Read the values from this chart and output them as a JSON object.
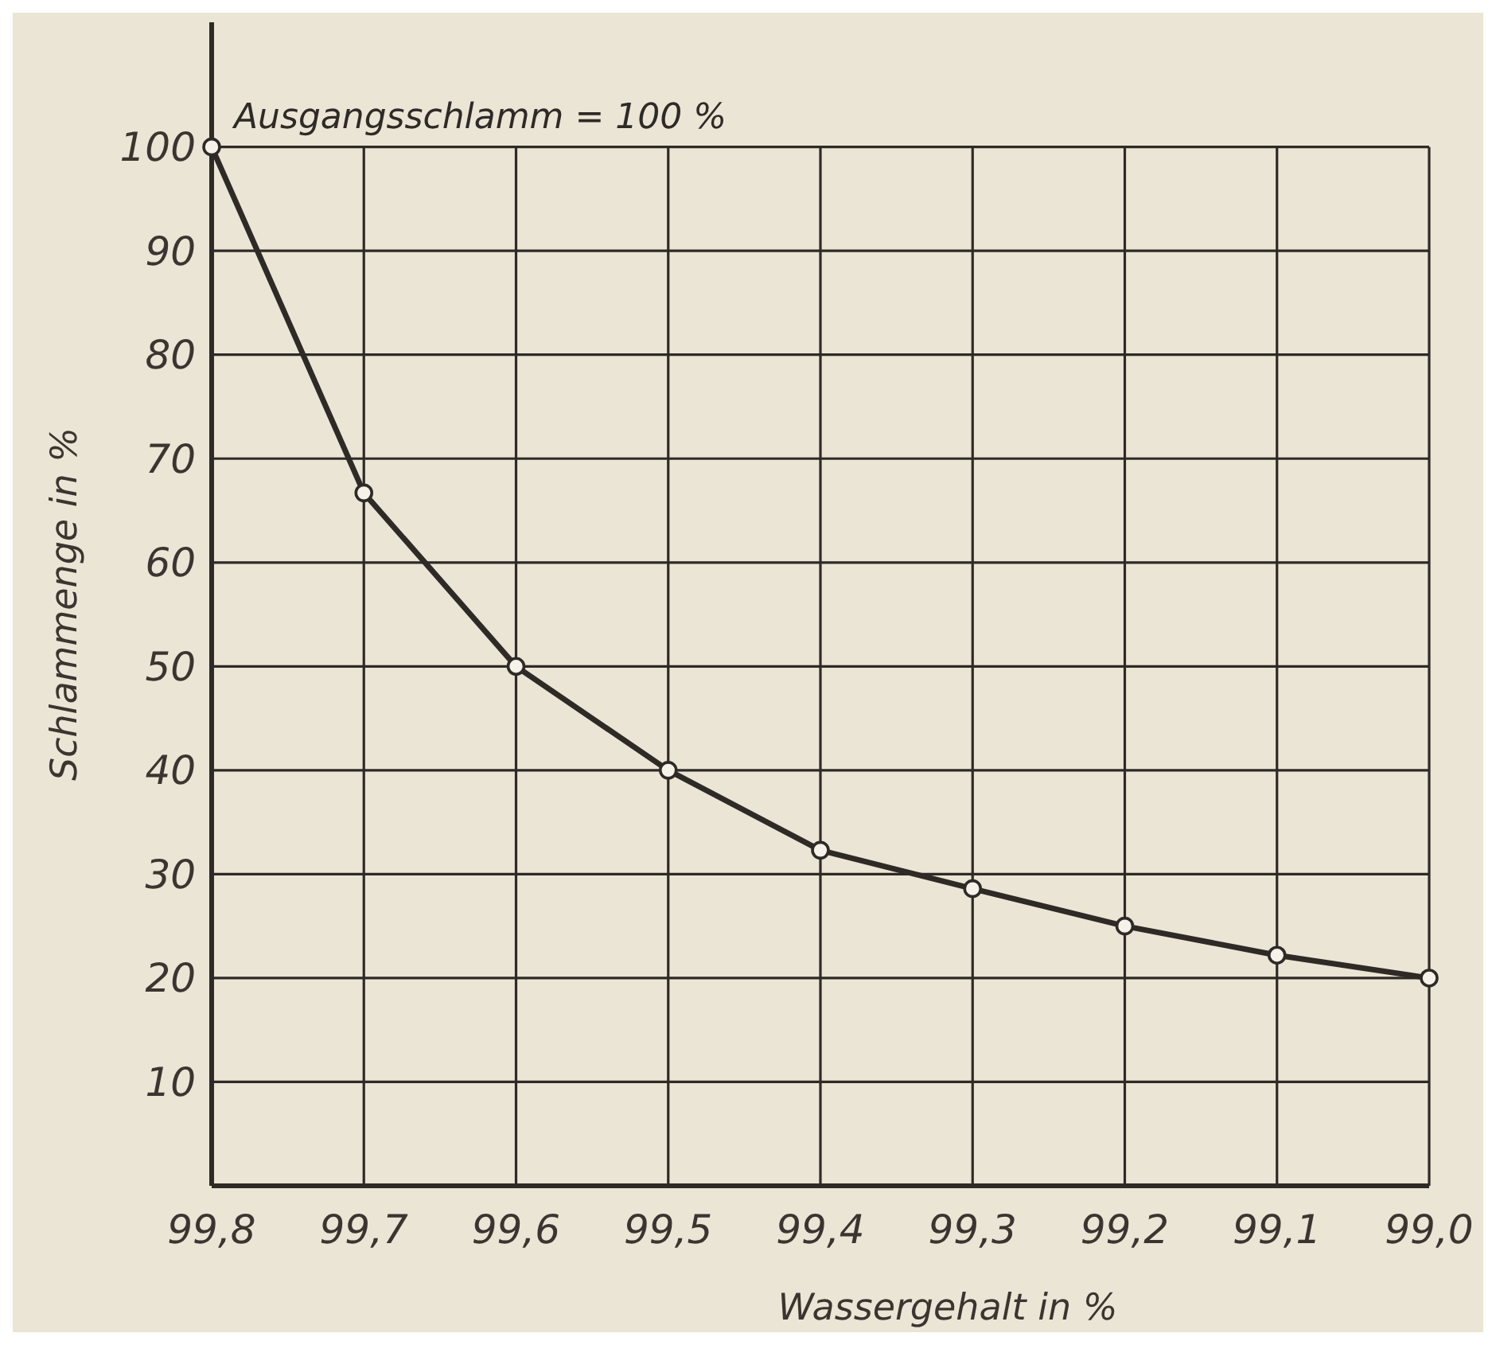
{
  "chart_data": {
    "type": "line",
    "xlabel": "Wassergehalt in %",
    "ylabel": "Schlammenge in %",
    "x": [
      99.8,
      99.7,
      99.6,
      99.5,
      99.4,
      99.3,
      99.2,
      99.1,
      99.0
    ],
    "series": [
      {
        "color": "#2e2a26",
        "values": [
          100,
          66.7,
          50,
          40,
          32.3,
          28.6,
          25,
          22.2,
          20
        ]
      }
    ],
    "xlim": [
      99.8,
      99.0
    ],
    "xticks": [
      {
        "value": 99.8,
        "label": "99,8"
      },
      {
        "value": 99.7,
        "label": "99,7"
      },
      {
        "value": 99.6,
        "label": "99,6"
      },
      {
        "value": 99.5,
        "label": "99,5"
      },
      {
        "value": 99.4,
        "label": "99,4"
      },
      {
        "value": 99.3,
        "label": "99,3"
      },
      {
        "value": 99.2,
        "label": "99,2"
      },
      {
        "value": 99.1,
        "label": "99,1"
      },
      {
        "value": 99.0,
        "label": "99,0"
      }
    ],
    "ylim": [
      0,
      112
    ],
    "yticks": [
      {
        "value": 0,
        "label": null
      },
      10,
      20,
      30,
      40,
      50,
      60,
      70,
      80,
      90,
      100
    ],
    "grid": true,
    "marker": "circle",
    "line_style": "solid",
    "annotations": [
      {
        "text": "Ausgangsschlamm = 100 %",
        "x": 99.8,
        "y": 100
      }
    ]
  }
}
